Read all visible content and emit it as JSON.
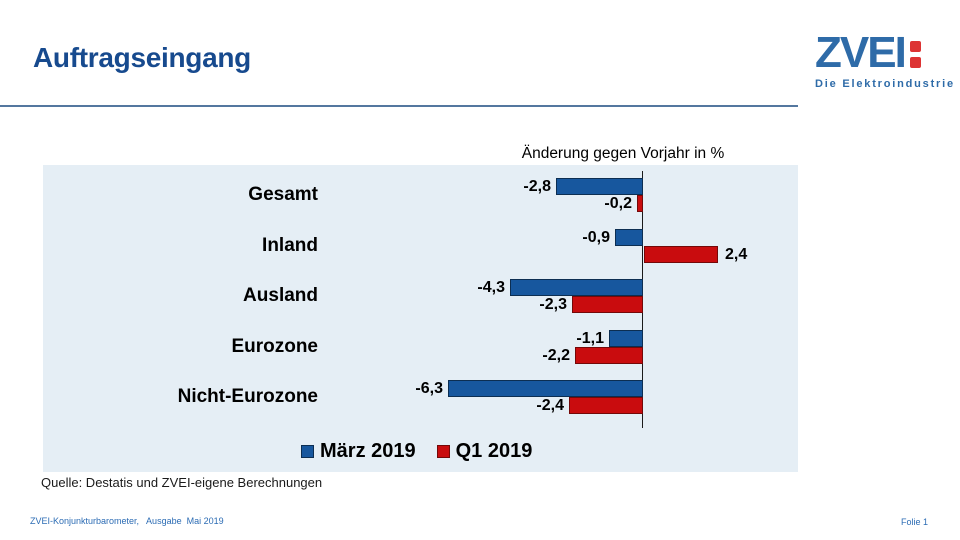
{
  "slide": {
    "title": "Auftragseingang",
    "logo": {
      "wordmark": "ZVEI",
      "tagline": "Die Elektroindustrie"
    },
    "source": "Quelle: Destatis und ZVEI-eigene Berechnungen",
    "footer_left": "ZVEI-Konjunkturbarometer,   Ausgabe  Mai 2019",
    "footer_right": "Folie 1"
  },
  "colors": {
    "title_blue": "#174a8e",
    "logo_blue": "#2e6ba8",
    "logo_red": "#dd3333",
    "separator_blue": "#54779f",
    "chart_background": "#e5eef5"
  },
  "chart_data": {
    "type": "bar",
    "orientation": "horizontal",
    "title": "Änderung gegen Vorjahr in %",
    "categories": [
      "Gesamt",
      "Inland",
      "Ausland",
      "Eurozone",
      "Nicht-Eurozone"
    ],
    "series": [
      {
        "name": "März 2019",
        "color": "#17579e",
        "border_color": "#0c2e52",
        "values": [
          -2.8,
          -0.9,
          -4.3,
          -1.1,
          -6.3
        ],
        "labels": [
          "-2,8",
          "-0,9",
          "-4,3",
          "-1,1",
          "-6,3"
        ]
      },
      {
        "name": "Q1 2019",
        "color": "#c90c0e",
        "border_color": "#740808",
        "values": [
          -0.2,
          2.4,
          -2.3,
          -2.2,
          -2.4
        ],
        "labels": [
          "-0,2",
          "2,4",
          "-2,3",
          "-2,2",
          "-2,4"
        ]
      }
    ],
    "xlim": [
      -7,
      4
    ],
    "legend_position": "bottom",
    "zero_axis": true,
    "grid": false
  }
}
